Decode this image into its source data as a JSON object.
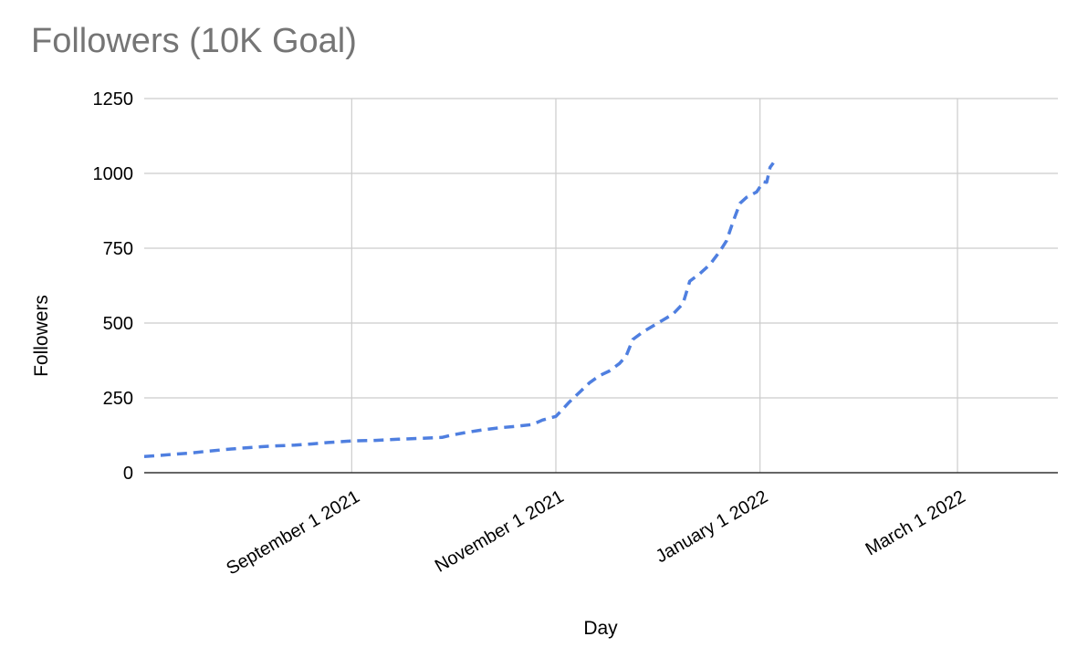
{
  "chart_data": {
    "type": "line",
    "title": "Followers (10K Goal)",
    "xlabel": "Day",
    "ylabel": "Followers",
    "ylim": [
      0,
      1250
    ],
    "xlim": [
      "2021-07-01",
      "2022-03-31"
    ],
    "y_ticks": [
      "0",
      "250",
      "500",
      "750",
      "1000",
      "1250"
    ],
    "x_ticks": [
      {
        "date": "2021-09-01",
        "label": "September 1 2021"
      },
      {
        "date": "2021-11-01",
        "label": "November 1 2021"
      },
      {
        "date": "2022-01-01",
        "label": "January 1 2022"
      },
      {
        "date": "2022-03-01",
        "label": "March 1 2022"
      }
    ],
    "grid": true,
    "series": [
      {
        "color": "#4f7fe0",
        "line_style": "dashed",
        "points": [
          [
            "2021-07-01",
            54
          ],
          [
            "2021-07-05",
            57
          ],
          [
            "2021-07-10",
            62
          ],
          [
            "2021-07-15",
            66
          ],
          [
            "2021-07-20",
            72
          ],
          [
            "2021-07-25",
            77
          ],
          [
            "2021-07-30",
            82
          ],
          [
            "2021-08-05",
            87
          ],
          [
            "2021-08-10",
            90
          ],
          [
            "2021-08-15",
            92
          ],
          [
            "2021-08-20",
            96
          ],
          [
            "2021-08-25",
            101
          ],
          [
            "2021-09-01",
            106
          ],
          [
            "2021-09-08",
            108
          ],
          [
            "2021-09-15",
            112
          ],
          [
            "2021-09-22",
            115
          ],
          [
            "2021-09-28",
            118
          ],
          [
            "2021-10-01",
            126
          ],
          [
            "2021-10-05",
            134
          ],
          [
            "2021-10-10",
            143
          ],
          [
            "2021-10-15",
            150
          ],
          [
            "2021-10-20",
            155
          ],
          [
            "2021-10-25",
            161
          ],
          [
            "2021-10-28",
            176
          ],
          [
            "2021-11-01",
            188
          ],
          [
            "2021-11-02",
            200
          ],
          [
            "2021-11-05",
            236
          ],
          [
            "2021-11-08",
            268
          ],
          [
            "2021-11-11",
            300
          ],
          [
            "2021-11-14",
            324
          ],
          [
            "2021-11-17",
            340
          ],
          [
            "2021-11-20",
            365
          ],
          [
            "2021-11-22",
            390
          ],
          [
            "2021-11-24",
            445
          ],
          [
            "2021-11-27",
            470
          ],
          [
            "2021-11-30",
            490
          ],
          [
            "2021-12-03",
            510
          ],
          [
            "2021-12-06",
            530
          ],
          [
            "2021-12-09",
            565
          ],
          [
            "2021-12-11",
            640
          ],
          [
            "2021-12-14",
            665
          ],
          [
            "2021-12-17",
            695
          ],
          [
            "2021-12-20",
            740
          ],
          [
            "2021-12-22",
            775
          ],
          [
            "2021-12-24",
            840
          ],
          [
            "2021-12-26",
            900
          ],
          [
            "2021-12-28",
            920
          ],
          [
            "2021-12-31",
            938
          ],
          [
            "2022-01-02",
            972
          ],
          [
            "2022-01-03",
            970
          ],
          [
            "2022-01-04",
            1020
          ],
          [
            "2022-01-05",
            1035
          ]
        ]
      }
    ]
  }
}
